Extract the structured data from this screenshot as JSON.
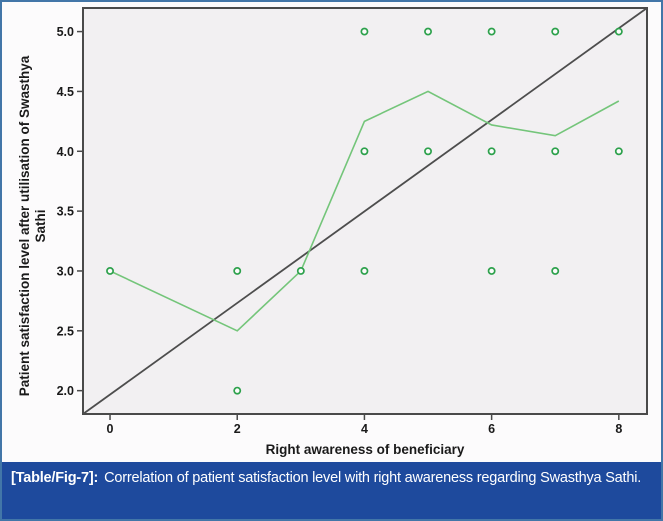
{
  "figure": {
    "border_color": "#4276a8",
    "background": "#fcfbfc"
  },
  "caption": {
    "label": "[Table/Fig-7]:",
    "text": "Correlation of patient satisfaction level with right awareness regarding Swasthya Sathi.",
    "background": "#1e4a9d",
    "text_color": "#ffffff"
  },
  "chart_data": {
    "type": "scatter",
    "title": "",
    "xlabel": "Right awareness of beneficiary",
    "ylabel": "Patient satisfaction level after utilisation of Swasthya Sathi",
    "ylabel_lines": [
      "Patient satisfaction level after utilisation of Swasthya",
      "Sathi"
    ],
    "x_tick_labels": [
      "0",
      "2",
      "4",
      "6",
      "8"
    ],
    "x_tick_values": [
      0,
      2,
      4,
      6,
      8
    ],
    "y_tick_labels": [
      "2.0",
      "2.5",
      "3.0",
      "3.5",
      "4.0",
      "4.5",
      "5.0"
    ],
    "y_tick_values": [
      2.0,
      2.5,
      3.0,
      3.5,
      4.0,
      4.5,
      5.0
    ],
    "xlim": [
      -0.425,
      8.443
    ],
    "ylim": [
      1.805,
      5.197
    ],
    "grid": false,
    "legend": null,
    "points": [
      [
        0,
        3
      ],
      [
        2,
        2
      ],
      [
        2,
        3
      ],
      [
        3,
        3
      ],
      [
        4,
        3
      ],
      [
        4,
        4
      ],
      [
        4,
        5
      ],
      [
        5,
        4
      ],
      [
        5,
        5
      ],
      [
        6,
        3
      ],
      [
        6,
        4
      ],
      [
        6,
        5
      ],
      [
        7,
        3
      ],
      [
        7,
        4
      ],
      [
        7,
        5
      ],
      [
        8,
        4
      ],
      [
        8,
        5
      ]
    ],
    "fit_line": [
      [
        0,
        3.0
      ],
      [
        2,
        2.5
      ],
      [
        3,
        3.0
      ],
      [
        4,
        4.25
      ],
      [
        5,
        4.5
      ],
      [
        6,
        4.22
      ],
      [
        7,
        4.13
      ],
      [
        8,
        4.42
      ]
    ],
    "reference_line": [
      [
        -0.425,
        1.805
      ],
      [
        8.443,
        5.197
      ]
    ],
    "colors": {
      "marker_stroke": "#2da14c",
      "marker_fill": "#fbfbfb",
      "fit_line": "#74c57a",
      "reference_line": "#4d4d4d",
      "plot_background": "#f2f0f2",
      "frame": "#4a4a4a",
      "tick_text": "#1a1a1a"
    }
  }
}
